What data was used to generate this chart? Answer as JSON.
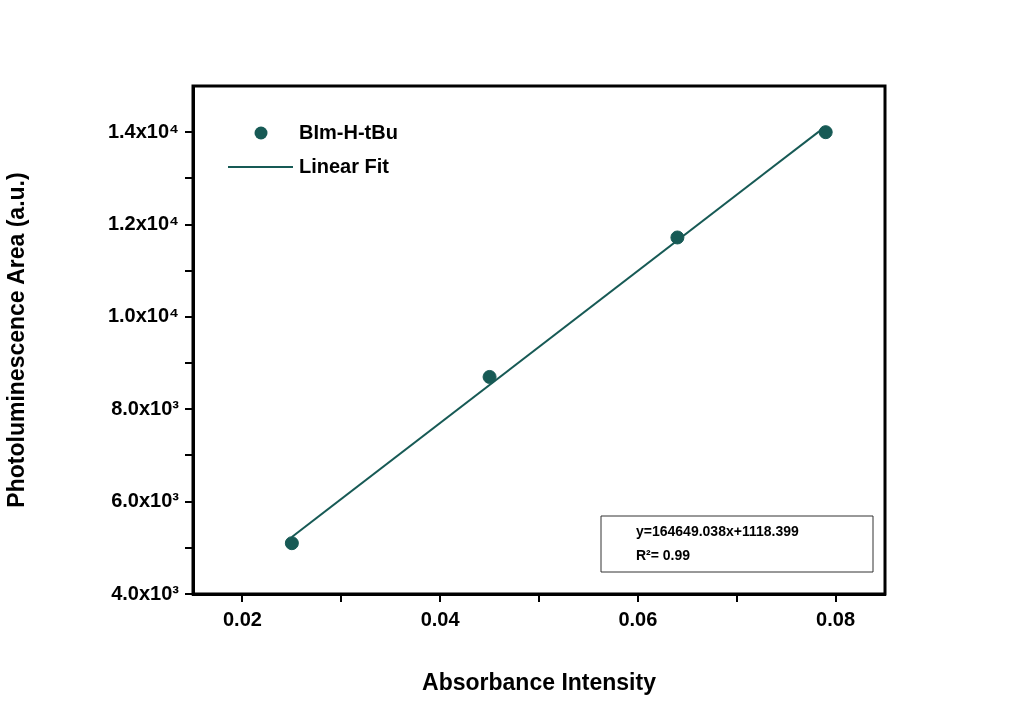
{
  "chart_data": {
    "type": "scatter",
    "xlabel": "Absorbance Intensity",
    "ylabel": "Photoluminescence Area (a.u.)",
    "xlim": [
      0.015,
      0.085
    ],
    "ylim": [
      4000,
      15000
    ],
    "xticks": [
      0.02,
      {
        "value": 0.03,
        "label": null
      },
      0.04,
      {
        "value": 0.05,
        "label": null
      },
      0.06,
      {
        "value": 0.07,
        "label": null
      },
      0.08
    ],
    "yticks": [
      {
        "value": 4000,
        "label": "4.0x10³"
      },
      {
        "value": 5000,
        "label": null
      },
      {
        "value": 6000,
        "label": "6.0x10³"
      },
      {
        "value": 7000,
        "label": null
      },
      {
        "value": 8000,
        "label": "8.0x10³"
      },
      {
        "value": 9000,
        "label": null
      },
      {
        "value": 10000,
        "label": "1.0x10⁴"
      },
      {
        "value": 11000,
        "label": null
      },
      {
        "value": 12000,
        "label": "1.2x10⁴"
      },
      {
        "value": 13000,
        "label": null
      },
      {
        "value": 14000,
        "label": "1.4x10⁴"
      }
    ],
    "x": [
      0.025,
      0.045,
      0.064,
      0.079
    ],
    "series": [
      {
        "name": "BIm-H-tBu",
        "color": "#175a55",
        "values": [
          5100,
          8700,
          11720,
          14000
        ],
        "marker": "circle"
      },
      {
        "name": "Linear Fit",
        "type": "line",
        "color": "#175a55",
        "x": [
          0.025,
          0.079
        ],
        "values": [
          5235,
          14126
        ],
        "marker": "none",
        "line_style": "solid"
      }
    ],
    "legend": "top left",
    "grid": false,
    "annotations": [
      "y=164649.038x+1118.399",
      "R²= 0.99"
    ]
  }
}
